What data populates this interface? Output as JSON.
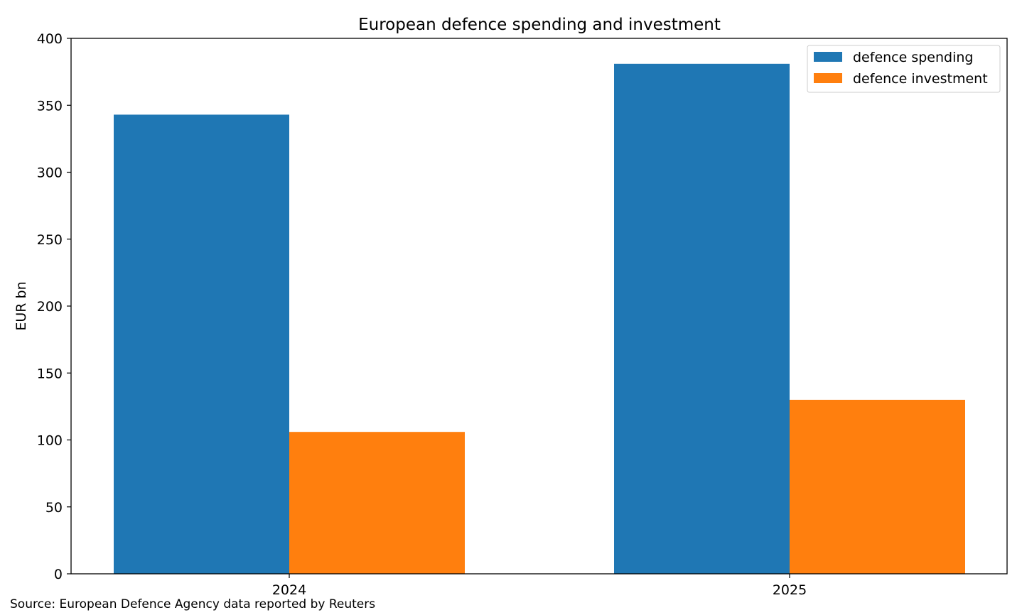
{
  "chart_data": {
    "type": "bar",
    "title": "European defence spending and investment",
    "xlabel": "",
    "ylabel": "EUR bn",
    "categories": [
      "2024",
      "2025"
    ],
    "series": [
      {
        "name": "defence spending",
        "color": "#1f77b4",
        "values": [
          343,
          381
        ]
      },
      {
        "name": "defence investment",
        "color": "#ff7f0e",
        "values": [
          106,
          130
        ]
      }
    ],
    "ylim": [
      0,
      400
    ],
    "yticks": [
      0,
      50,
      100,
      150,
      200,
      250,
      300,
      350,
      400
    ],
    "grid": false,
    "legend_position": "top-right"
  },
  "footnote": "Source: European Defence Agency data reported by Reuters"
}
